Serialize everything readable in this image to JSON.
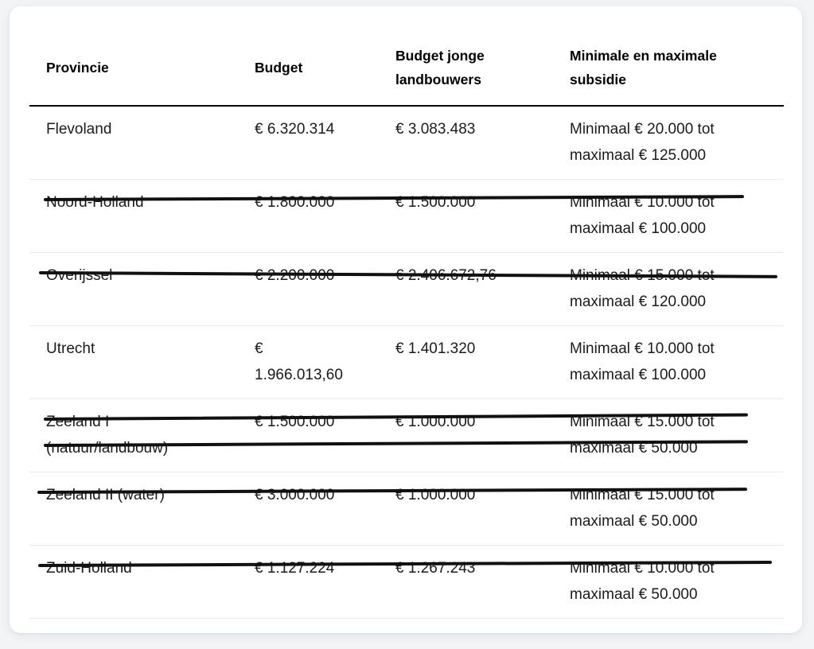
{
  "page": {
    "background_color": "#f2f4f5",
    "card_background_color": "#ffffff",
    "text_color": "#1b1b1b",
    "strike_color": "#111111"
  },
  "table": {
    "headers": [
      {
        "label": "Provincie"
      },
      {
        "label": "Budget"
      },
      {
        "label": "Budget jonge\nlandbouwers"
      },
      {
        "label": "Minimale en maximale\nsubsidie"
      }
    ],
    "rows": [
      {
        "provincie": "Flevoland",
        "budget": "€ 6.320.314",
        "budget_jonge_landbouwers": "€ 3.083.483",
        "min_max_subsidie": "Minimaal € 20.000 tot\nmaximaal € 125.000",
        "struck": false
      },
      {
        "provincie": "Noord-Holland",
        "budget": "€ 1.800.000",
        "budget_jonge_landbouwers": "€ 1.500.000",
        "min_max_subsidie": "Minimaal € 10.000 tot\nmaximaal € 100.000",
        "struck": true
      },
      {
        "provincie": "Overijssel",
        "budget": "€ 2.200.000",
        "budget_jonge_landbouwers": "€ 2.406.672,76",
        "min_max_subsidie": "Minimaal € 15.000 tot\nmaximaal € 120.000",
        "struck": true
      },
      {
        "provincie": "Utrecht",
        "budget": "€\n1.966.013,60",
        "budget_jonge_landbouwers": "€ 1.401.320",
        "min_max_subsidie": "Minimaal € 10.000 tot\nmaximaal € 100.000",
        "struck": false
      },
      {
        "provincie": "Zeeland I\n(natuur/landbouw)",
        "budget": "€ 1.500.000",
        "budget_jonge_landbouwers": "€ 1.000.000",
        "min_max_subsidie": "Minimaal € 15.000 tot\nmaximaal € 50.000",
        "struck": true
      },
      {
        "provincie": "Zeeland II (water)",
        "budget": "€ 3.000.000",
        "budget_jonge_landbouwers": "€ 1.000.000",
        "min_max_subsidie": "Minimaal € 15.000 tot\nmaximaal € 50.000",
        "struck": true
      },
      {
        "provincie": "Zuid-Holland",
        "budget": "€ 1.127.224",
        "budget_jonge_landbouwers": "€ 1.267.243",
        "min_max_subsidie": "Minimaal € 10.000 tot\nmaximaal € 50.000",
        "struck": true
      }
    ]
  }
}
